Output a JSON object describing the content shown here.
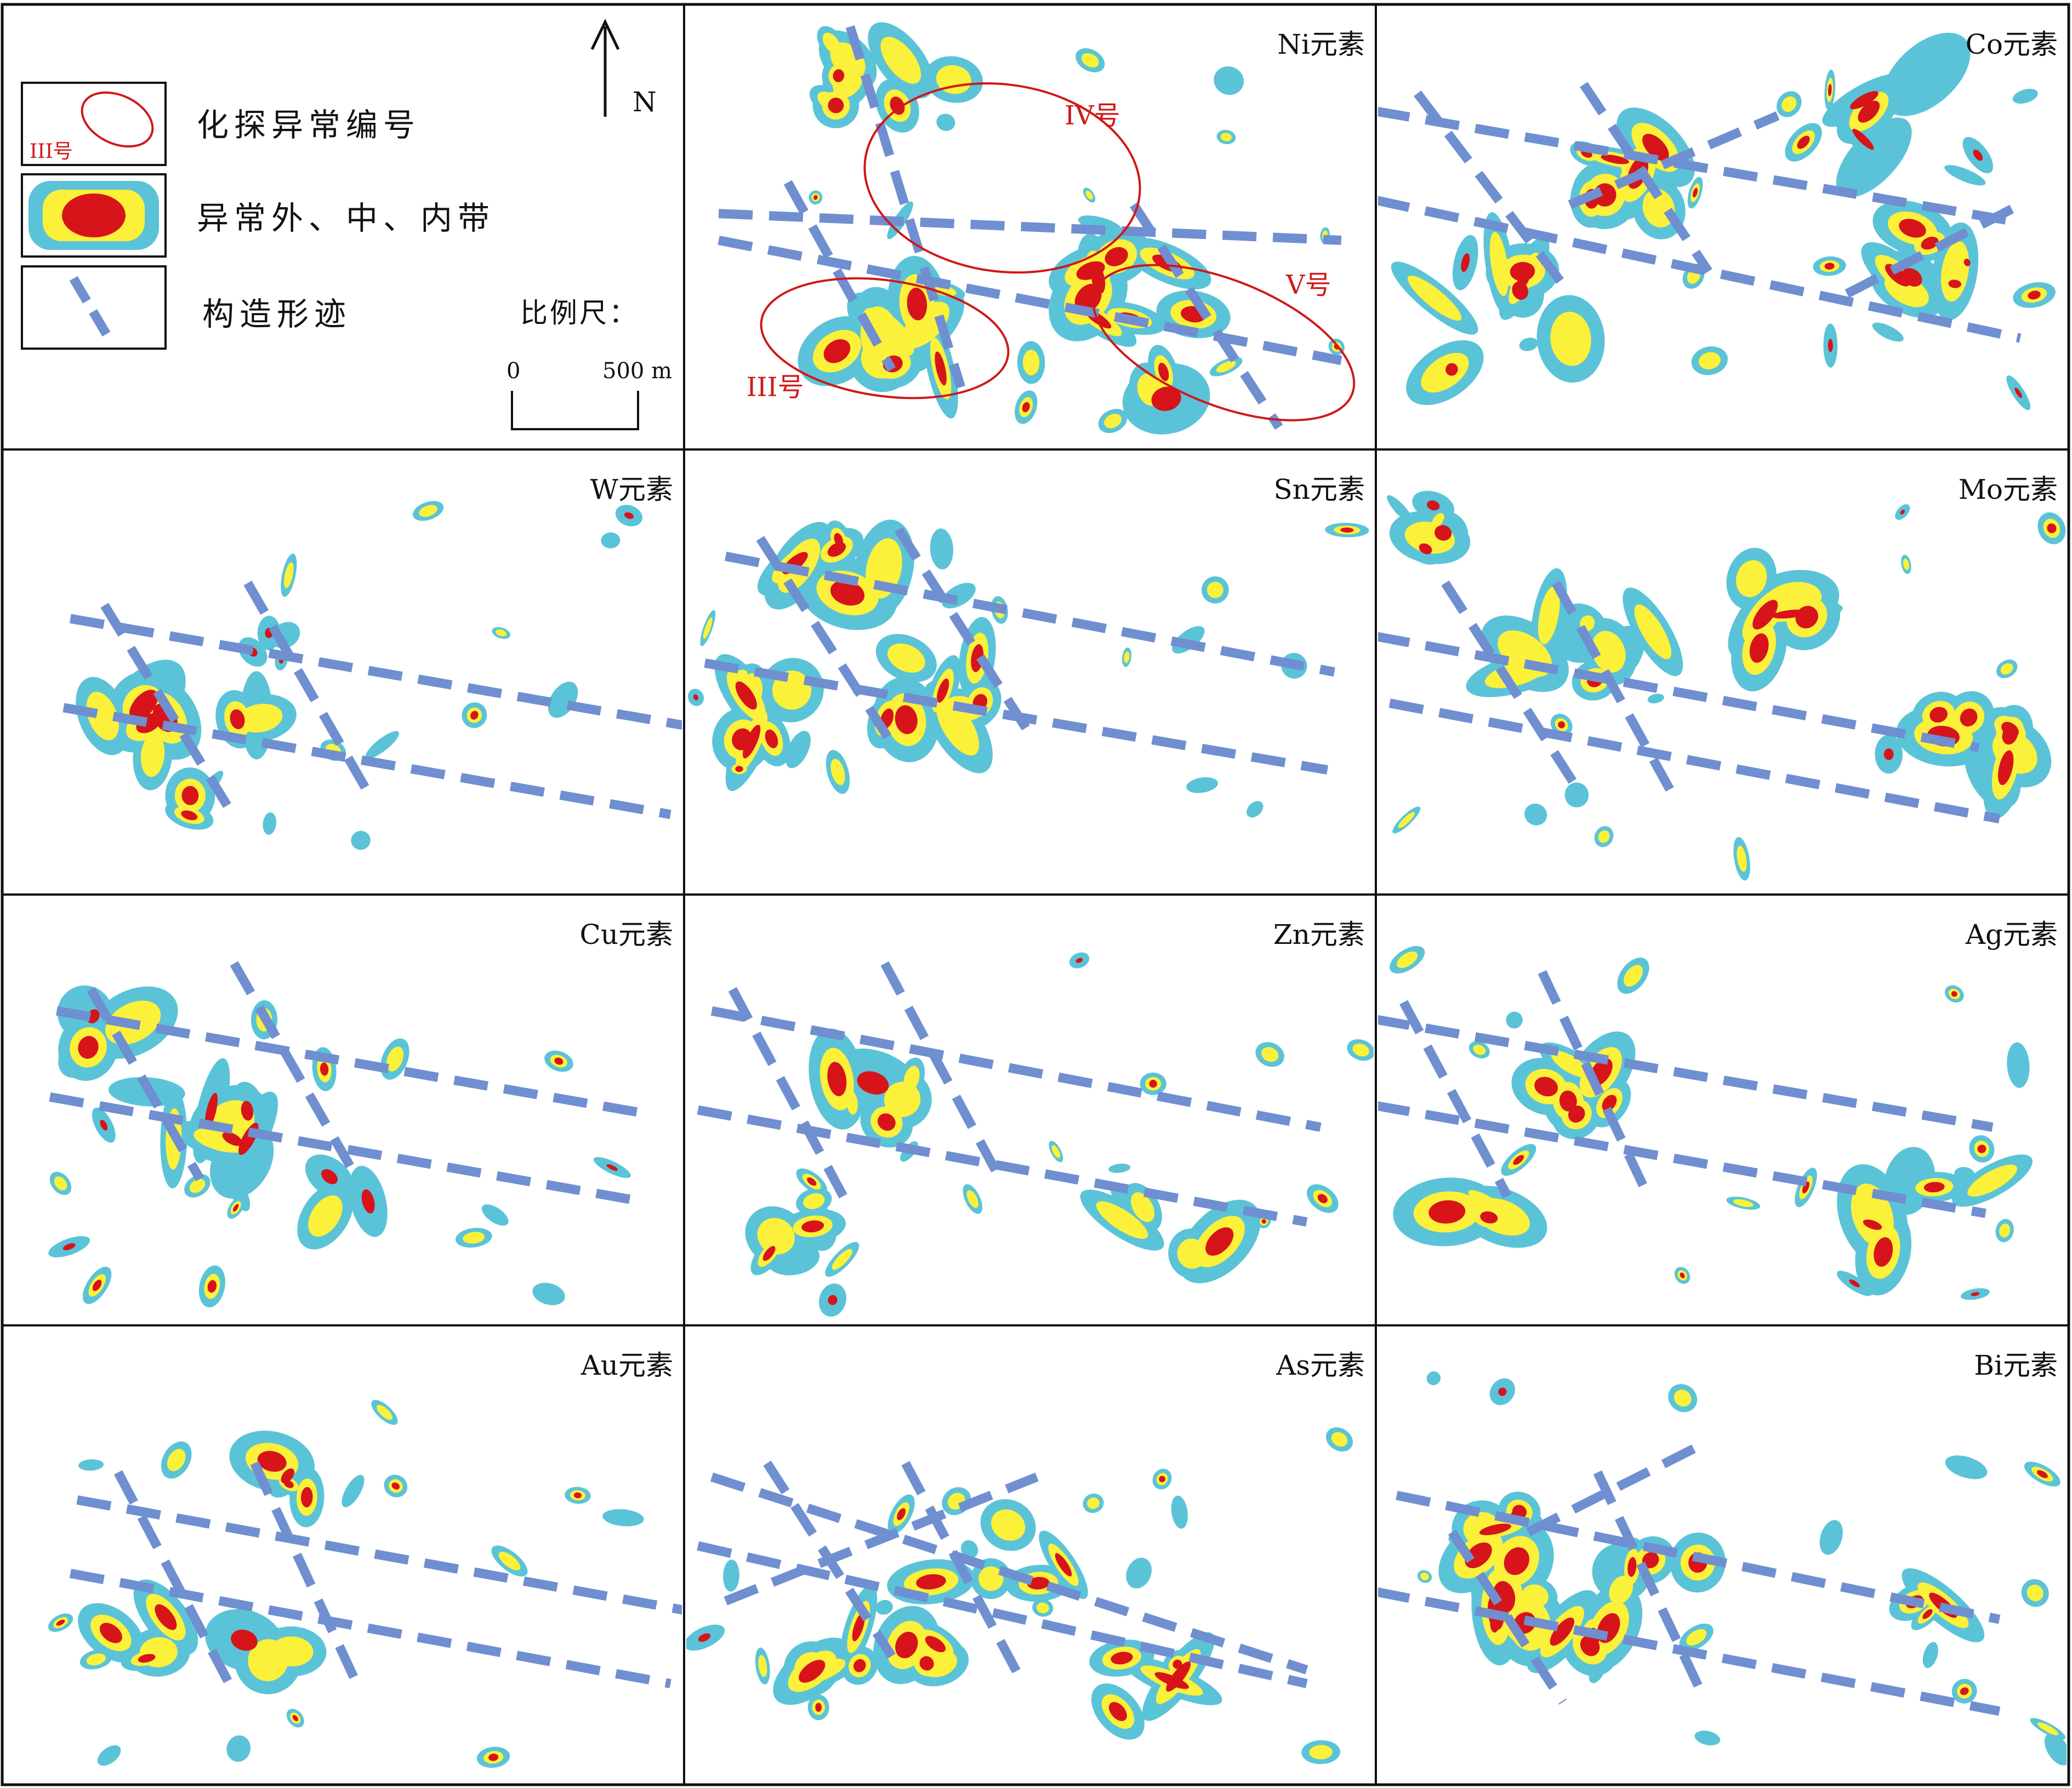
{
  "colors": {
    "outer_zone": "#5bc3d8",
    "middle_zone": "#fbf03a",
    "inner_zone": "#d6141a",
    "structure": "#6f8fd0",
    "anomaly_outline": "#d01818",
    "frame": "#111111"
  },
  "legend": {
    "anomaly_number_label": "化探异常编号",
    "anomaly_sample_tag": "III号",
    "zones_label": "异常外、中、内带",
    "structure_label": "构造形迹",
    "north": "N",
    "scale_label": "比例尺：",
    "scale_zero": "0",
    "scale_end": "500 m"
  },
  "ni_anomaly_labels": [
    "IV号",
    "V号",
    "III号"
  ],
  "panels": [
    {
      "element_label": "Ni元素"
    },
    {
      "element_label": "Co元素"
    },
    {
      "element_label": "W元素"
    },
    {
      "element_label": "Sn元素"
    },
    {
      "element_label": "Mo元素"
    },
    {
      "element_label": "Cu元素"
    },
    {
      "element_label": "Zn元素"
    },
    {
      "element_label": "Ag元素"
    },
    {
      "element_label": "Au元素"
    },
    {
      "element_label": "As元素"
    },
    {
      "element_label": "Bi元素"
    }
  ]
}
